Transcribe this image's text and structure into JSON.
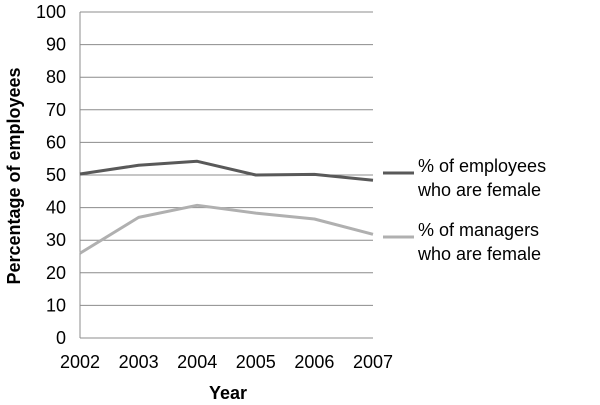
{
  "chart_data": {
    "type": "line",
    "x": [
      "2002",
      "2003",
      "2004",
      "2005",
      "2006",
      "2007"
    ],
    "series": [
      {
        "name_lines": [
          "% of employees",
          "who are female"
        ],
        "color": "#595959",
        "values": [
          50.3,
          53,
          54.2,
          50,
          50.2,
          48.4
        ]
      },
      {
        "name_lines": [
          "% of managers",
          "who are female"
        ],
        "color": "#b0b0b0",
        "values": [
          26,
          37,
          40.7,
          38.3,
          36.5,
          31.8
        ]
      }
    ],
    "xlabel": "Year",
    "ylabel": "Percentage of employees",
    "ylim": [
      0,
      100
    ],
    "yticks": [
      "0",
      "10",
      "20",
      "30",
      "40",
      "50",
      "60",
      "70",
      "80",
      "90",
      "100"
    ],
    "grid": "horizontal",
    "legend_position": "right"
  }
}
